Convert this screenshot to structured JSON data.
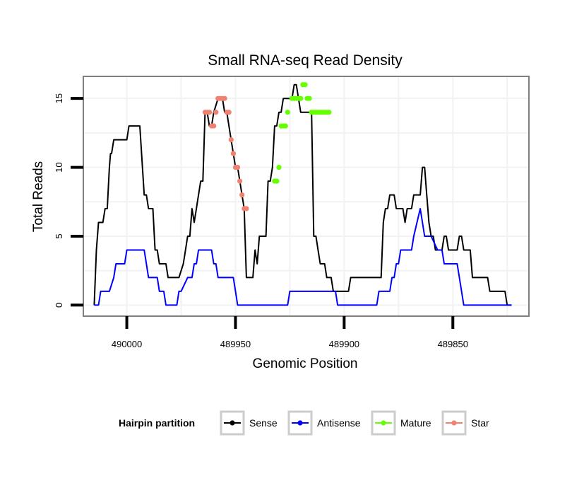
{
  "chart_data": {
    "type": "line",
    "title": "Small RNA-seq Read Density",
    "xlabel": "Genomic Position",
    "ylabel": "Total Reads",
    "x_reversed": true,
    "xlim": [
      490020,
      489815
    ],
    "ylim": [
      -0.8,
      16.6
    ],
    "x_ticks": [
      490000,
      489950,
      489900,
      489850
    ],
    "x_tick_labels": [
      "490000",
      "489950",
      "489900",
      "489850"
    ],
    "y_ticks": [
      0,
      5,
      10,
      15
    ],
    "y_tick_labels": [
      "0",
      "5",
      "10",
      "15"
    ],
    "grid": true,
    "legend": {
      "title": "Hairpin partition",
      "position": "bottom",
      "entries": [
        {
          "label": "Sense",
          "color": "#000000"
        },
        {
          "label": "Antisense",
          "color": "#0000ff"
        },
        {
          "label": "Mature",
          "color": "#66ff00"
        },
        {
          "label": "Star",
          "color": "#f08070"
        }
      ]
    },
    "series": [
      {
        "name": "Sense",
        "color": "#000000",
        "kind": "line",
        "x": [
          490015,
          490014,
          490013.5,
          490013,
          490012,
          490011,
          490010,
          490009,
          490008,
          490007.5,
          490007,
          490006,
          490005,
          490004,
          490003,
          490000,
          489999,
          489998,
          489996,
          489994,
          489992,
          489991,
          489990,
          489989,
          489988,
          489987,
          489986,
          489985,
          489984,
          489983,
          489982,
          489981,
          489980,
          489979,
          489978,
          489976,
          489974,
          489973,
          489972,
          489971,
          489970,
          489969,
          489968,
          489967,
          489966,
          489965,
          489964,
          489963,
          489962,
          489961,
          489960,
          489958,
          489956,
          489955,
          489954,
          489953,
          489952,
          489951,
          489950,
          489949,
          489948,
          489947,
          489946,
          489945,
          489944,
          489943,
          489942,
          489941,
          489940,
          489939,
          489938,
          489937,
          489936,
          489935,
          489934,
          489933,
          489932,
          489931,
          489930,
          489929,
          489928,
          489927,
          489926,
          489925,
          489924,
          489923,
          489922,
          489921,
          489920,
          489919,
          489918,
          489917,
          489916,
          489915,
          489914,
          489913,
          489912,
          489911,
          489910,
          489909,
          489908,
          489907,
          489906,
          489905,
          489904,
          489903,
          489902,
          489901,
          489900,
          489899,
          489898,
          489897,
          489896,
          489895,
          489894,
          489893,
          489892,
          489891,
          489890,
          489889,
          489888,
          489887,
          489886,
          489885,
          489884,
          489883,
          489882,
          489881,
          489880,
          489879,
          489878,
          489877,
          489876,
          489875,
          489874,
          489873,
          489872,
          489871,
          489870,
          489869,
          489868,
          489867,
          489866,
          489865,
          489864,
          489863,
          489862,
          489861,
          489860,
          489859,
          489858,
          489857,
          489856,
          489855,
          489854,
          489853,
          489852,
          489851,
          489850,
          489849,
          489848,
          489847,
          489846,
          489845,
          489844,
          489843,
          489842,
          489841,
          489840,
          489839,
          489838,
          489837,
          489836,
          489835,
          489834,
          489833,
          489832,
          489831,
          489830,
          489829,
          489828,
          489827,
          489826,
          489825,
          489824,
          489823
        ],
        "values": [
          0,
          4,
          5,
          6,
          6,
          6,
          7,
          7,
          10,
          11,
          11,
          12,
          12,
          12,
          12,
          12,
          13,
          13,
          13,
          13,
          8,
          8,
          7,
          7,
          7,
          4,
          4,
          3,
          3,
          3,
          3,
          2,
          2,
          2,
          2,
          2,
          3,
          4,
          5,
          5,
          7,
          6,
          7,
          8,
          9,
          9,
          14,
          14,
          13,
          13,
          14,
          15,
          15,
          14,
          14,
          13,
          12,
          11,
          10,
          10,
          9,
          8,
          7,
          2,
          2,
          2,
          2,
          4,
          3,
          5,
          5,
          5,
          5,
          9,
          9,
          10,
          13,
          13,
          14,
          14,
          15,
          15,
          15,
          15,
          15,
          16,
          16,
          15,
          14,
          14,
          14,
          14,
          14,
          14,
          5,
          5,
          4,
          3,
          3,
          3,
          2,
          2,
          2,
          1,
          1,
          1,
          1,
          1,
          1,
          1,
          1,
          2,
          2,
          2,
          2,
          2,
          2,
          2,
          2,
          2,
          2,
          2,
          2,
          2,
          2,
          2,
          6,
          7,
          7,
          8,
          8,
          8,
          7,
          7,
          7,
          7,
          6,
          7,
          7,
          7,
          8,
          8,
          8,
          8,
          10,
          10,
          8,
          6,
          5,
          5,
          4,
          4,
          4,
          4,
          5,
          5,
          4,
          4,
          4,
          4,
          4,
          5,
          5,
          4,
          4,
          4,
          4,
          2,
          2,
          2,
          2,
          2,
          2,
          2,
          2,
          1,
          1,
          1,
          1,
          1,
          1,
          1,
          1,
          0,
          0,
          0
        ]
      },
      {
        "name": "Antisense",
        "color": "#0000ff",
        "kind": "line",
        "x": [
          490015,
          490013,
          490012,
          490011,
          490010,
          490009,
          490008,
          490006,
          490005,
          490004,
          490003,
          490001,
          490000,
          489999,
          489998,
          489997,
          489995,
          489992,
          489991,
          489990,
          489988,
          489987,
          489986,
          489985,
          489983,
          489982,
          489978,
          489977,
          489976,
          489975,
          489972,
          489971,
          489970,
          489969,
          489968,
          489967,
          489965,
          489964,
          489963,
          489962,
          489961,
          489960,
          489959,
          489958,
          489956,
          489955,
          489954,
          489953,
          489952,
          489951,
          489950,
          489949,
          489948,
          489947,
          489946,
          489944,
          489943,
          489942,
          489940,
          489926,
          489925,
          489924,
          489923,
          489921,
          489920,
          489918,
          489917,
          489916,
          489904,
          489903,
          489896,
          489886,
          489885,
          489884,
          489883,
          489882,
          489881,
          489879,
          489878,
          489877,
          489876,
          489875,
          489874,
          489872,
          489871,
          489870,
          489869,
          489868,
          489865,
          489864,
          489863,
          489862,
          489861,
          489860,
          489857,
          489856,
          489855,
          489854,
          489853,
          489852,
          489851,
          489850,
          489848,
          489847,
          489846,
          489845,
          489844,
          489843,
          489842,
          489840,
          489830,
          489823
        ],
        "values": [
          0,
          0,
          1,
          1,
          1,
          1,
          1,
          2,
          3,
          3,
          3,
          3,
          4,
          4,
          4,
          4,
          4,
          4,
          3,
          2,
          2,
          2,
          2,
          1,
          1,
          0,
          0,
          0,
          1,
          1,
          2,
          2,
          2,
          3,
          3,
          4,
          4,
          4,
          4,
          4,
          4,
          3,
          3,
          2,
          2,
          2,
          2,
          2,
          2,
          2,
          1,
          0,
          0,
          0,
          0,
          0,
          0,
          0,
          0,
          0,
          1,
          1,
          1,
          1,
          1,
          1,
          1,
          1,
          1,
          0,
          0,
          0,
          0,
          1,
          1,
          1,
          1,
          1,
          2,
          2,
          3,
          3,
          4,
          4,
          4,
          4,
          4,
          5,
          7,
          6,
          5,
          5,
          5,
          5,
          4,
          4,
          4,
          3,
          3,
          3,
          3,
          3,
          3,
          2,
          1,
          0,
          0,
          0,
          0,
          0,
          0,
          0
        ]
      },
      {
        "name": "Mature",
        "color": "#66ff00",
        "kind": "points",
        "x": [
          489932,
          489931,
          489930,
          489929,
          489928,
          489927,
          489926,
          489924,
          489923,
          489922,
          489921,
          489920,
          489919,
          489918,
          489917,
          489916,
          489915,
          489914,
          489913,
          489912,
          489911,
          489910,
          489909,
          489908,
          489907
        ],
        "values": [
          9,
          9,
          10,
          13,
          13,
          13,
          14,
          15,
          15,
          15,
          15,
          15,
          16,
          16,
          15,
          15,
          14,
          14,
          14,
          14,
          14,
          14,
          14,
          14,
          14
        ]
      },
      {
        "name": "Star",
        "color": "#f08070",
        "kind": "points",
        "x": [
          489964,
          489963,
          489962,
          489961,
          489960,
          489959,
          489958,
          489957,
          489956,
          489955,
          489954,
          489953,
          489952,
          489951,
          489950,
          489949,
          489948,
          489947,
          489946,
          489945
        ],
        "values": [
          14,
          14,
          14,
          13,
          13,
          14,
          15,
          15,
          15,
          15,
          14,
          14,
          12,
          11,
          10,
          10,
          9,
          8,
          7,
          7
        ]
      }
    ]
  }
}
